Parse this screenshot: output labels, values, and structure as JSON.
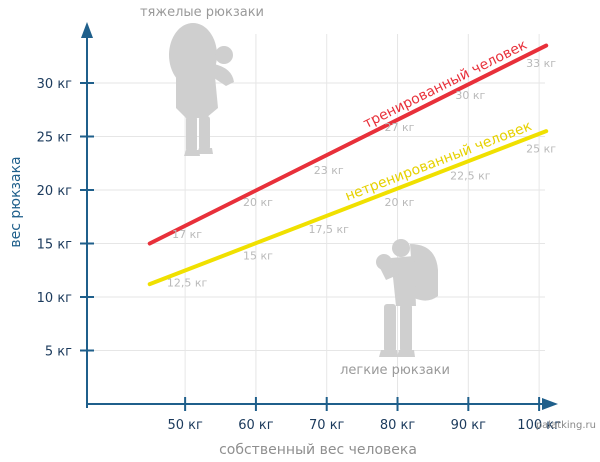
{
  "chart_data": {
    "type": "line",
    "title": "",
    "xlabel": "собственный вес человека",
    "ylabel": "вес рюкзака",
    "xlim": [
      36,
      110
    ],
    "ylim": [
      0,
      37
    ],
    "grid": true,
    "x_ticks": [
      50,
      60,
      70,
      80,
      90,
      100
    ],
    "x_tick_labels": [
      "50 кг",
      "60 кг",
      "70 кг",
      "80 кг",
      "90 кг",
      "100 кг"
    ],
    "y_ticks": [
      5,
      10,
      15,
      20,
      25,
      30
    ],
    "y_tick_labels": [
      "5 кг",
      "10 кг",
      "15 кг",
      "20 кг",
      "25 кг",
      "30 кг"
    ],
    "series": [
      {
        "name": "тренированный человек",
        "color": "#e8303a",
        "x": [
          45,
          101
        ],
        "y": [
          15,
          33.5
        ],
        "point_labels": [
          {
            "x": 50,
            "y": 17,
            "text": "17 кг"
          },
          {
            "x": 60,
            "y": 20,
            "text": "20 кг"
          },
          {
            "x": 70,
            "y": 23,
            "text": "23 кг"
          },
          {
            "x": 80,
            "y": 27,
            "text": "27 кг"
          },
          {
            "x": 90,
            "y": 30,
            "text": "30 кг"
          },
          {
            "x": 100,
            "y": 33,
            "text": "33 кг"
          }
        ]
      },
      {
        "name": "нетренированный человек",
        "color": "#f0e000",
        "x": [
          45,
          101
        ],
        "y": [
          11.2,
          25.5
        ],
        "point_labels": [
          {
            "x": 50,
            "y": 12.5,
            "text": "12,5 кг"
          },
          {
            "x": 60,
            "y": 15,
            "text": "15 кг"
          },
          {
            "x": 70,
            "y": 17.5,
            "text": "17,5 кг"
          },
          {
            "x": 80,
            "y": 20,
            "text": "20 кг"
          },
          {
            "x": 90,
            "y": 22.5,
            "text": "22,5 кг"
          },
          {
            "x": 100,
            "y": 25,
            "text": "25 кг"
          }
        ]
      }
    ],
    "annotations": [
      {
        "text": "тяжелые рюкзаки",
        "position": "top-left"
      },
      {
        "text": "легкие рюкзаки",
        "position": "bottom-right"
      }
    ],
    "credit": "palatking.ru"
  },
  "icons": [
    "hiker-heavy-backpack-icon",
    "hiker-light-backpack-icon"
  ]
}
